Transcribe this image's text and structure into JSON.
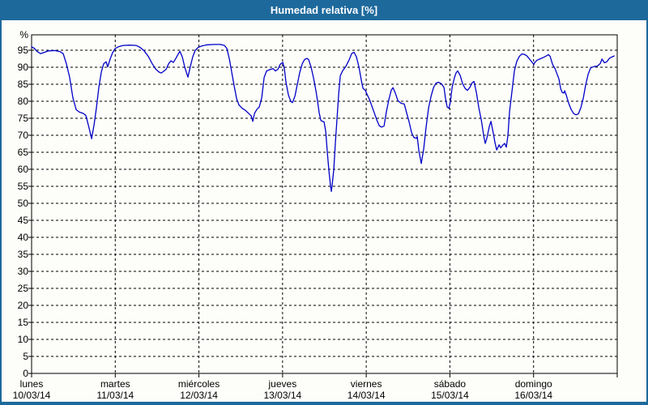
{
  "window": {
    "title": "Humedad relativa [%]"
  },
  "colors": {
    "titlebar_bg": "#1e699c",
    "titlebar_text": "#ffffff",
    "window_border": "#1e699c",
    "content_bg": "#fdfdfa",
    "plot_border": "#000000",
    "grid": "#000000",
    "text": "#000000",
    "line": "#0000c8"
  },
  "chart_data": {
    "type": "line",
    "title": "Humedad relativa [%]",
    "ylabel": "%",
    "ylim": [
      0,
      100
    ],
    "ytick_step": 5,
    "grid": "dashed horizontal every 5%, dashed vertical at each day boundary",
    "legend_position": "none",
    "x_axis_days": [
      {
        "weekday": "lunes",
        "date": "10/03/14"
      },
      {
        "weekday": "martes",
        "date": "11/03/14"
      },
      {
        "weekday": "miércoles",
        "date": "12/03/14"
      },
      {
        "weekday": "jueves",
        "date": "13/03/14"
      },
      {
        "weekday": "viernes",
        "date": "14/03/14"
      },
      {
        "weekday": "sábado",
        "date": "15/03/14"
      },
      {
        "weekday": "domingo",
        "date": "16/03/14"
      }
    ],
    "series": [
      {
        "name": "Humedad relativa",
        "color": "#0000c8",
        "x_unit": "days (0 = lunes 10/03/14 00:00)",
        "points": [
          [
            0.0,
            96.0
          ],
          [
            0.03,
            95.6
          ],
          [
            0.068,
            94.6
          ],
          [
            0.107,
            94.0
          ],
          [
            0.145,
            94.3
          ],
          [
            0.203,
            94.8
          ],
          [
            0.281,
            94.9
          ],
          [
            0.339,
            94.6
          ],
          [
            0.378,
            94.0
          ],
          [
            0.416,
            91.0
          ],
          [
            0.455,
            87.0
          ],
          [
            0.494,
            81.0
          ],
          [
            0.533,
            77.5
          ],
          [
            0.571,
            76.8
          ],
          [
            0.62,
            76.4
          ],
          [
            0.649,
            75.8
          ],
          [
            0.668,
            74.0
          ],
          [
            0.688,
            72.0
          ],
          [
            0.717,
            69.0
          ],
          [
            0.746,
            73.0
          ],
          [
            0.775,
            78.0
          ],
          [
            0.804,
            84.0
          ],
          [
            0.833,
            88.5
          ],
          [
            0.862,
            91.0
          ],
          [
            0.891,
            91.6
          ],
          [
            0.91,
            90.1
          ],
          [
            0.94,
            92.5
          ],
          [
            0.969,
            94.3
          ],
          [
            0.998,
            95.5
          ],
          [
            1.036,
            96.0
          ],
          [
            1.094,
            96.4
          ],
          [
            1.172,
            96.5
          ],
          [
            1.25,
            96.4
          ],
          [
            1.298,
            95.8
          ],
          [
            1.346,
            94.8
          ],
          [
            1.395,
            93.2
          ],
          [
            1.443,
            91.0
          ],
          [
            1.482,
            89.5
          ],
          [
            1.521,
            88.6
          ],
          [
            1.55,
            88.3
          ],
          [
            1.579,
            88.8
          ],
          [
            1.608,
            89.4
          ],
          [
            1.637,
            91.0
          ],
          [
            1.666,
            91.9
          ],
          [
            1.695,
            91.4
          ],
          [
            1.724,
            92.6
          ],
          [
            1.753,
            93.9
          ],
          [
            1.773,
            94.7
          ],
          [
            1.802,
            93.0
          ],
          [
            1.831,
            90.0
          ],
          [
            1.869,
            87.1
          ],
          [
            1.898,
            90.2
          ],
          [
            1.927,
            93.1
          ],
          [
            1.957,
            95.0
          ],
          [
            1.995,
            95.9
          ],
          [
            2.044,
            96.3
          ],
          [
            2.102,
            96.6
          ],
          [
            2.179,
            96.7
          ],
          [
            2.257,
            96.7
          ],
          [
            2.305,
            96.4
          ],
          [
            2.334,
            95.5
          ],
          [
            2.363,
            92.5
          ],
          [
            2.392,
            88.5
          ],
          [
            2.421,
            84.5
          ],
          [
            2.45,
            80.8
          ],
          [
            2.479,
            78.9
          ],
          [
            2.518,
            77.9
          ],
          [
            2.557,
            77.3
          ],
          [
            2.596,
            76.4
          ],
          [
            2.625,
            75.7
          ],
          [
            2.644,
            74.1
          ],
          [
            2.664,
            76.4
          ],
          [
            2.693,
            77.6
          ],
          [
            2.722,
            78.3
          ],
          [
            2.751,
            81.0
          ],
          [
            2.78,
            87.0
          ],
          [
            2.809,
            88.9
          ],
          [
            2.848,
            89.3
          ],
          [
            2.886,
            89.6
          ],
          [
            2.915,
            88.9
          ],
          [
            2.944,
            89.4
          ],
          [
            2.973,
            90.9
          ],
          [
            3.003,
            91.4
          ],
          [
            3.022,
            89.5
          ],
          [
            3.041,
            85.5
          ],
          [
            3.07,
            81.8
          ],
          [
            3.099,
            79.9
          ],
          [
            3.119,
            79.6
          ],
          [
            3.148,
            81.5
          ],
          [
            3.177,
            85.0
          ],
          [
            3.206,
            88.5
          ],
          [
            3.235,
            91.0
          ],
          [
            3.264,
            92.3
          ],
          [
            3.293,
            92.6
          ],
          [
            3.312,
            92.2
          ],
          [
            3.341,
            90.0
          ],
          [
            3.37,
            86.8
          ],
          [
            3.399,
            83.0
          ],
          [
            3.419,
            80.0
          ],
          [
            3.438,
            76.5
          ],
          [
            3.458,
            74.3
          ],
          [
            3.496,
            73.9
          ],
          [
            3.516,
            71.0
          ],
          [
            3.535,
            65.0
          ],
          [
            3.554,
            59.5
          ],
          [
            3.574,
            55.0
          ],
          [
            3.583,
            53.5
          ],
          [
            3.593,
            55.5
          ],
          [
            3.612,
            60.0
          ],
          [
            3.632,
            68.0
          ],
          [
            3.651,
            75.0
          ],
          [
            3.67,
            82.0
          ],
          [
            3.69,
            87.5
          ],
          [
            3.719,
            89.0
          ],
          [
            3.758,
            90.3
          ],
          [
            3.796,
            92.2
          ],
          [
            3.825,
            94.0
          ],
          [
            3.854,
            94.4
          ],
          [
            3.883,
            93.0
          ],
          [
            3.913,
            90.0
          ],
          [
            3.942,
            86.0
          ],
          [
            3.961,
            83.8
          ],
          [
            3.99,
            83.2
          ],
          [
            4.01,
            82.0
          ],
          [
            4.039,
            80.5
          ],
          [
            4.068,
            78.5
          ],
          [
            4.097,
            76.5
          ],
          [
            4.126,
            74.5
          ],
          [
            4.155,
            72.8
          ],
          [
            4.184,
            72.4
          ],
          [
            4.213,
            72.7
          ],
          [
            4.242,
            77.0
          ],
          [
            4.271,
            80.5
          ],
          [
            4.3,
            83.3
          ],
          [
            4.32,
            84.0
          ],
          [
            4.349,
            82.3
          ],
          [
            4.378,
            80.2
          ],
          [
            4.417,
            79.4
          ],
          [
            4.455,
            79.2
          ],
          [
            4.484,
            76.5
          ],
          [
            4.513,
            73.9
          ],
          [
            4.542,
            70.8
          ],
          [
            4.571,
            69.3
          ],
          [
            4.6,
            69.1
          ],
          [
            4.61,
            69.6
          ],
          [
            4.629,
            65.5
          ],
          [
            4.658,
            61.7
          ],
          [
            4.687,
            66.0
          ],
          [
            4.716,
            72.5
          ],
          [
            4.745,
            78.0
          ],
          [
            4.775,
            81.5
          ],
          [
            4.804,
            84.0
          ],
          [
            4.833,
            85.3
          ],
          [
            4.862,
            85.6
          ],
          [
            4.901,
            85.1
          ],
          [
            4.93,
            84.0
          ],
          [
            4.949,
            80.5
          ],
          [
            4.968,
            78.3
          ],
          [
            4.988,
            77.9
          ],
          [
            5.007,
            80.0
          ],
          [
            5.026,
            84.0
          ],
          [
            5.055,
            87.0
          ],
          [
            5.075,
            88.4
          ],
          [
            5.094,
            88.9
          ],
          [
            5.123,
            87.6
          ],
          [
            5.152,
            85.2
          ],
          [
            5.181,
            83.8
          ],
          [
            5.21,
            83.2
          ],
          [
            5.239,
            84.1
          ],
          [
            5.268,
            85.5
          ],
          [
            5.288,
            85.8
          ],
          [
            5.317,
            82.5
          ],
          [
            5.346,
            78.0
          ],
          [
            5.375,
            74.5
          ],
          [
            5.404,
            69.8
          ],
          [
            5.423,
            67.6
          ],
          [
            5.442,
            69.2
          ],
          [
            5.471,
            72.6
          ],
          [
            5.491,
            74.1
          ],
          [
            5.52,
            70.5
          ],
          [
            5.539,
            67.8
          ],
          [
            5.559,
            65.7
          ],
          [
            5.588,
            67.2
          ],
          [
            5.607,
            66.3
          ],
          [
            5.636,
            67.2
          ],
          [
            5.655,
            67.6
          ],
          [
            5.675,
            66.5
          ],
          [
            5.694,
            70.0
          ],
          [
            5.713,
            77.0
          ],
          [
            5.742,
            83.0
          ],
          [
            5.771,
            89.0
          ],
          [
            5.8,
            91.8
          ],
          [
            5.83,
            93.2
          ],
          [
            5.859,
            93.9
          ],
          [
            5.888,
            93.8
          ],
          [
            5.917,
            93.4
          ],
          [
            5.946,
            92.6
          ],
          [
            5.975,
            91.7
          ],
          [
            6.004,
            90.8
          ],
          [
            6.014,
            91.4
          ],
          [
            6.043,
            92.1
          ],
          [
            6.082,
            92.5
          ],
          [
            6.12,
            92.9
          ],
          [
            6.159,
            93.4
          ],
          [
            6.179,
            93.7
          ],
          [
            6.198,
            93.2
          ],
          [
            6.227,
            90.8
          ],
          [
            6.256,
            89.6
          ],
          [
            6.275,
            88.4
          ],
          [
            6.304,
            86.5
          ],
          [
            6.324,
            83.7
          ],
          [
            6.343,
            82.6
          ],
          [
            6.362,
            82.4
          ],
          [
            6.372,
            83.1
          ],
          [
            6.391,
            81.8
          ],
          [
            6.42,
            79.4
          ],
          [
            6.449,
            77.6
          ],
          [
            6.478,
            76.4
          ],
          [
            6.507,
            76.0
          ],
          [
            6.536,
            76.3
          ],
          [
            6.565,
            78.1
          ],
          [
            6.595,
            81.0
          ],
          [
            6.624,
            85.0
          ],
          [
            6.653,
            88.0
          ],
          [
            6.682,
            89.8
          ],
          [
            6.721,
            90.2
          ],
          [
            6.76,
            90.3
          ],
          [
            6.798,
            91.1
          ],
          [
            6.818,
            92.4
          ],
          [
            6.847,
            91.3
          ],
          [
            6.876,
            91.6
          ],
          [
            6.905,
            92.6
          ],
          [
            6.934,
            93.0
          ],
          [
            6.963,
            93.3
          ]
        ]
      }
    ]
  }
}
